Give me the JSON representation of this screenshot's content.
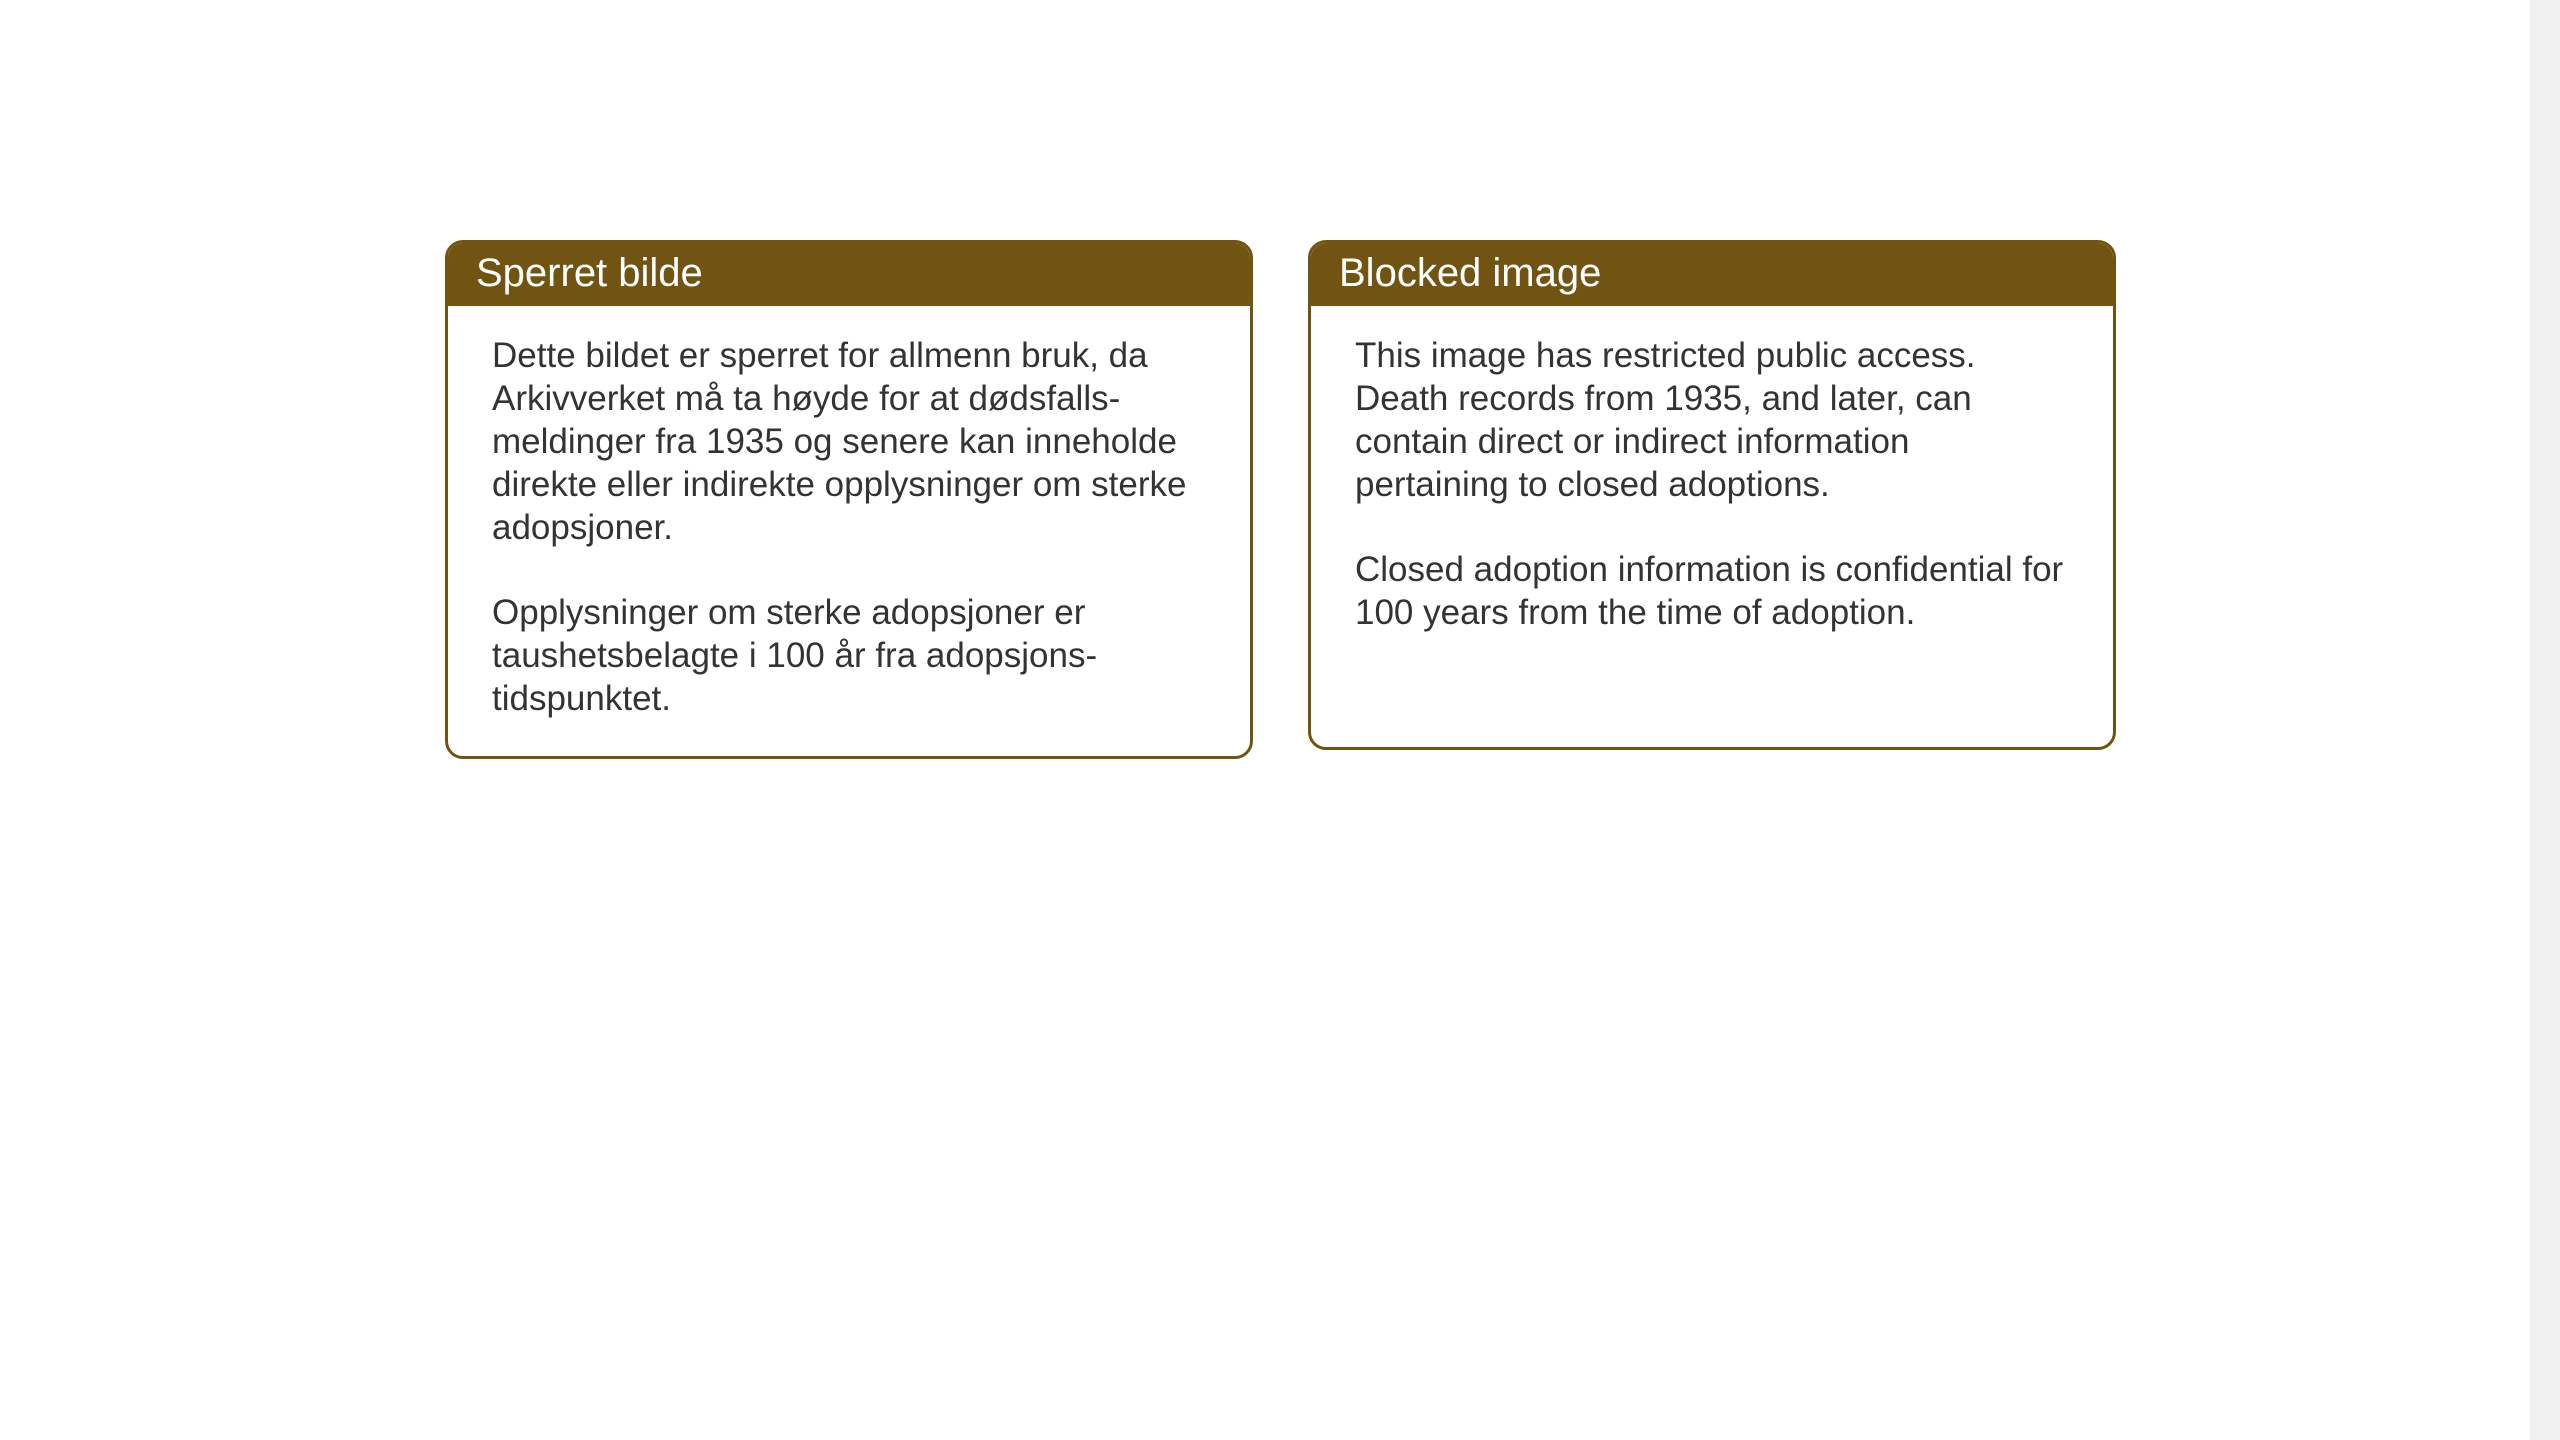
{
  "layout": {
    "background_color": "#ffffff",
    "card_border_color": "#725412",
    "card_header_bg": "#725412",
    "card_header_color": "#ffffff",
    "body_text_color": "#333333",
    "card_border_radius": 18,
    "card_border_width": 3,
    "header_fontsize": 40,
    "body_fontsize": 35
  },
  "cards": {
    "left": {
      "title": "Sperret bilde",
      "p1": "Dette bildet er sperret for allmenn bruk, da Arkivverket må ta høyde for at dødsfalls-meldinger fra 1935 og senere kan inneholde direkte eller indirekte opplysninger om sterke adopsjoner.",
      "p2": "Opplysninger om sterke adopsjoner er taushetsbelagte i 100 år fra adopsjons-tidspunktet."
    },
    "right": {
      "title": "Blocked image",
      "p1": "This image has restricted public access. Death records from 1935, and later, can contain direct or indirect information pertaining to closed adoptions.",
      "p2": "Closed adoption information is confidential for 100 years from the time of adoption."
    }
  }
}
